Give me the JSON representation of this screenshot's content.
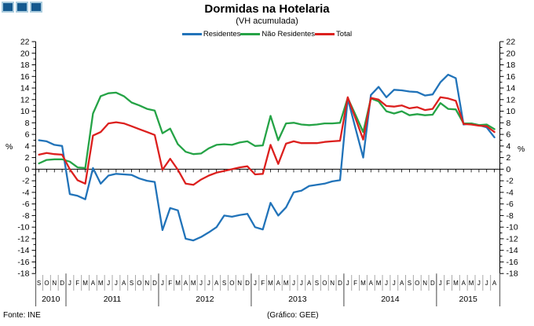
{
  "header": {
    "title": "Dormidas na Hotelaria",
    "subtitle": "(VH acumulada)"
  },
  "legend": [
    {
      "label": "Residentes",
      "color": "#2173B9"
    },
    {
      "label": "Não Residentes",
      "color": "#25A346"
    },
    {
      "label": "Total",
      "color": "#DC201E"
    }
  ],
  "footer": {
    "source": "Fonte: INE",
    "credit": "(Gráfico: GEE)"
  },
  "logo": {
    "count": 3,
    "fill": "#15598F",
    "border": "#A9CBDD"
  },
  "chart_data": {
    "type": "line",
    "title": "Dormidas na Hotelaria",
    "subtitle": "(VH acumulada)",
    "ylabel": "%",
    "ylim": [
      -18,
      22
    ],
    "y_step": 2,
    "grid": "none",
    "legend_position": "top",
    "x_months": [
      "S",
      "O",
      "N",
      "D",
      "J",
      "F",
      "M",
      "A",
      "M",
      "J",
      "J",
      "A",
      "S",
      "O",
      "N",
      "D",
      "J",
      "F",
      "M",
      "A",
      "M",
      "J",
      "J",
      "A",
      "S",
      "O",
      "N",
      "D",
      "J",
      "F",
      "M",
      "A",
      "M",
      "J",
      "J",
      "A",
      "S",
      "O",
      "N",
      "D",
      "J",
      "F",
      "M",
      "A",
      "M",
      "J",
      "J",
      "A",
      "S",
      "O",
      "N",
      "D",
      "J",
      "F",
      "M",
      "A",
      "M",
      "J",
      "J",
      "A"
    ],
    "years": [
      {
        "label": "2010",
        "months": 4
      },
      {
        "label": "2011",
        "months": 12
      },
      {
        "label": "2012",
        "months": 12
      },
      {
        "label": "2013",
        "months": 12
      },
      {
        "label": "2014",
        "months": 12
      },
      {
        "label": "2015",
        "months": 8
      }
    ],
    "series": [
      {
        "name": "Residentes",
        "color": "#2173B9",
        "values": [
          5.0,
          4.8,
          4.2,
          4.0,
          -4.3,
          -4.6,
          -5.2,
          0.2,
          -2.5,
          -1.1,
          -0.8,
          -0.9,
          -1.0,
          -1.6,
          -2.0,
          -2.2,
          -10.5,
          -6.7,
          -7.1,
          -12.0,
          -12.3,
          -11.7,
          -10.9,
          -10.0,
          -8.0,
          -8.2,
          -7.9,
          -7.7,
          -10.0,
          -10.4,
          -5.8,
          -8.0,
          -6.6,
          -4.0,
          -3.7,
          -2.9,
          -2.7,
          -2.5,
          -2.1,
          -1.9,
          12.2,
          7.1,
          2.0,
          12.8,
          14.2,
          12.4,
          13.7,
          13.6,
          13.4,
          13.3,
          12.7,
          12.9,
          15.0,
          16.3,
          15.7,
          7.7,
          7.9,
          7.6,
          7.2,
          5.5
        ]
      },
      {
        "name": "Não Residentes",
        "color": "#25A346",
        "values": [
          1.0,
          1.6,
          1.7,
          1.7,
          1.3,
          0.3,
          0.2,
          9.6,
          12.6,
          13.1,
          13.2,
          12.6,
          11.5,
          11.0,
          10.4,
          10.1,
          6.2,
          7.0,
          4.3,
          3.0,
          2.6,
          2.7,
          3.6,
          4.2,
          4.3,
          4.2,
          4.6,
          4.8,
          4.0,
          4.1,
          9.2,
          5.0,
          7.9,
          8.0,
          7.7,
          7.6,
          7.7,
          7.9,
          7.9,
          8.0,
          12.3,
          9.4,
          6.4,
          12.2,
          11.7,
          10.0,
          9.6,
          10.0,
          9.3,
          9.5,
          9.3,
          9.4,
          11.4,
          10.4,
          10.3,
          7.9,
          7.9,
          7.6,
          7.7,
          6.9
        ]
      },
      {
        "name": "Total",
        "color": "#DC201E",
        "values": [
          2.5,
          2.8,
          2.6,
          2.5,
          0.0,
          -1.9,
          -2.5,
          5.8,
          6.4,
          7.9,
          8.1,
          7.9,
          7.4,
          6.9,
          6.4,
          5.9,
          -0.1,
          1.8,
          -0.1,
          -2.5,
          -2.7,
          -1.8,
          -1.1,
          -0.6,
          -0.3,
          0.0,
          0.3,
          0.5,
          -0.9,
          -0.8,
          4.2,
          0.9,
          4.4,
          4.8,
          4.5,
          4.5,
          4.5,
          4.7,
          4.8,
          4.9,
          12.4,
          8.8,
          5.1,
          12.3,
          12.0,
          10.9,
          10.8,
          11.0,
          10.5,
          10.7,
          10.2,
          10.4,
          12.4,
          12.2,
          11.8,
          7.8,
          7.7,
          7.5,
          7.4,
          6.4
        ]
      }
    ]
  }
}
